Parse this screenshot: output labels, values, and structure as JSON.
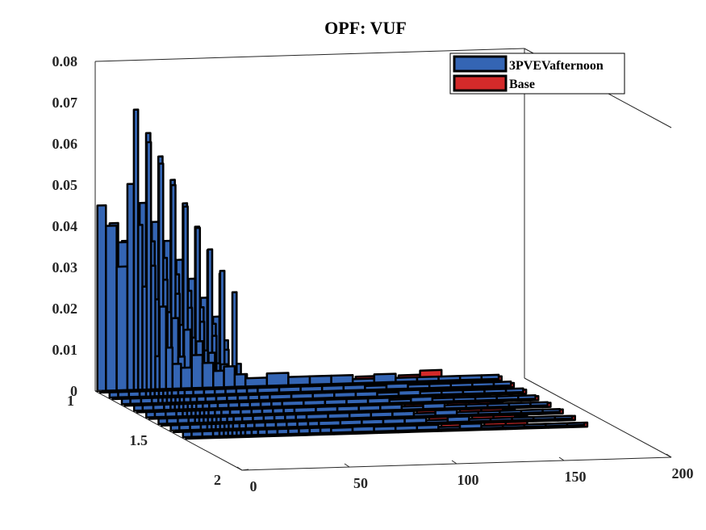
{
  "chart_data": {
    "type": "area",
    "title": "OPF: VUF",
    "xlabel": "",
    "ylabel": "",
    "zlabel": "",
    "x_axis": {
      "range": [
        0,
        200
      ],
      "ticks": [
        "0",
        "50",
        "100",
        "150",
        "200"
      ]
    },
    "y_axis": {
      "range": [
        1,
        2
      ],
      "ticks": [
        "1",
        "1.5",
        "2"
      ]
    },
    "z_axis": {
      "range": [
        0,
        0.08
      ],
      "ticks": [
        "0",
        "0.01",
        "0.02",
        "0.03",
        "0.04",
        "0.05",
        "0.06",
        "0.07",
        "0.08"
      ]
    },
    "legend": {
      "placement": "top-right"
    },
    "series": [
      {
        "name": "3PVEVafternoon",
        "color": "#3465b4",
        "y_level": 1,
        "x": [
          1,
          5,
          10,
          15,
          18,
          20,
          22,
          24,
          26,
          28,
          30,
          33,
          36,
          40,
          45,
          50,
          55,
          60,
          65,
          70,
          80,
          90,
          100,
          110,
          120,
          130,
          140,
          150,
          160,
          170,
          180
        ],
        "values": [
          0.045,
          0.04,
          0.03,
          0.05,
          0.068,
          0.04,
          0.025,
          0.06,
          0.03,
          0.008,
          0.02,
          0.01,
          0.006,
          0.005,
          0.008,
          0.006,
          0.004,
          0.005,
          0.003,
          0.002,
          0.003,
          0.002,
          0.002,
          0.002,
          0.001,
          0.002,
          0.001,
          0.001,
          0.001,
          0.001,
          0.001
        ]
      },
      {
        "name": "Base",
        "color": "#d32a2a",
        "y_level": 1,
        "x": [
          1,
          10,
          20,
          30,
          40,
          50,
          60,
          70,
          80,
          90,
          100,
          110,
          120,
          130,
          140,
          150,
          160,
          170,
          180
        ],
        "values": [
          0.001,
          0.001,
          0.001,
          0.001,
          0.001,
          0.001,
          0.001,
          0.001,
          0.001,
          0.001,
          0.002,
          0.001,
          0.002,
          0.001,
          0.002,
          0.003,
          0.001,
          0.001,
          0.001
        ]
      }
    ]
  }
}
